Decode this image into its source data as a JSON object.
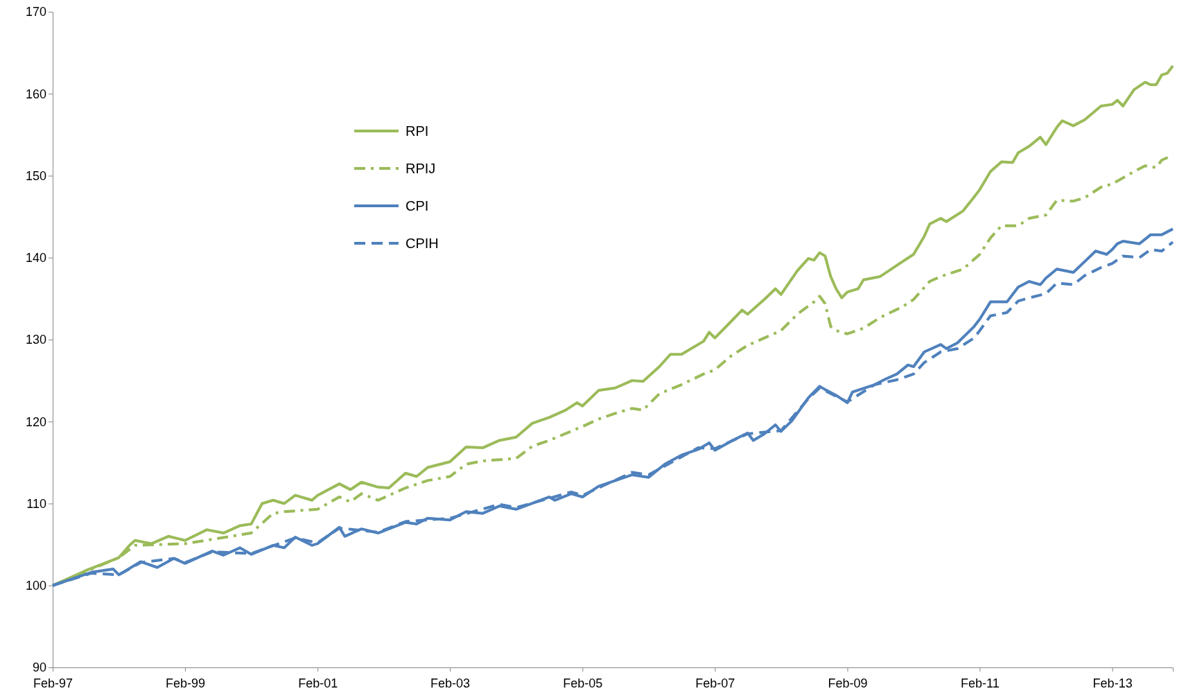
{
  "chart_data": {
    "type": "line",
    "ylim": [
      90,
      170
    ],
    "yticks": [
      90,
      100,
      110,
      120,
      130,
      140,
      150,
      160,
      170
    ],
    "xlim": [
      "1997-02",
      "2014-01"
    ],
    "xticks": [
      {
        "value": "1997-02",
        "label": "Feb-97"
      },
      {
        "value": "1999-02",
        "label": "Feb-99"
      },
      {
        "value": "2001-02",
        "label": "Feb-01"
      },
      {
        "value": "2003-02",
        "label": "Feb-03"
      },
      {
        "value": "2005-02",
        "label": "Feb-05"
      },
      {
        "value": "2007-02",
        "label": "Feb-07"
      },
      {
        "value": "2009-02",
        "label": "Feb-09"
      },
      {
        "value": "2011-02",
        "label": "Feb-11"
      },
      {
        "value": "2013-02",
        "label": "Feb-13"
      }
    ],
    "grid": false,
    "legend": "top left",
    "marker": "none",
    "series": [
      {
        "name": "RPI",
        "color": "#9bbb59",
        "line_style": "solid",
        "x": [
          "1997-02",
          "1997-08",
          "1998-02",
          "1998-04",
          "1998-05",
          "1998-08",
          "1998-11",
          "1999-02",
          "1999-06",
          "1999-09",
          "1999-12",
          "2000-02",
          "2000-04",
          "2000-06",
          "2000-08",
          "2000-10",
          "2001-01",
          "2001-02",
          "2001-06",
          "2001-08",
          "2001-10",
          "2002-01",
          "2002-03",
          "2002-06",
          "2002-08",
          "2002-10",
          "2003-02",
          "2003-05",
          "2003-08",
          "2003-11",
          "2004-02",
          "2004-05",
          "2004-08",
          "2004-11",
          "2005-01",
          "2005-02",
          "2005-05",
          "2005-08",
          "2005-11",
          "2006-01",
          "2006-04",
          "2006-06",
          "2006-08",
          "2006-12",
          "2007-01",
          "2007-02",
          "2007-05",
          "2007-07",
          "2007-08",
          "2007-11",
          "2008-01",
          "2008-02",
          "2008-05",
          "2008-07",
          "2008-08",
          "2008-09",
          "2008-10",
          "2008-11",
          "2008-12",
          "2009-01",
          "2009-02",
          "2009-04",
          "2009-05",
          "2009-08",
          "2009-12",
          "2010-02",
          "2010-04",
          "2010-05",
          "2010-07",
          "2010-08",
          "2010-11",
          "2011-01",
          "2011-02",
          "2011-04",
          "2011-06",
          "2011-08",
          "2011-09",
          "2011-11",
          "2012-01",
          "2012-02",
          "2012-04",
          "2012-05",
          "2012-07",
          "2012-09",
          "2012-12",
          "2013-02",
          "2013-03",
          "2013-04",
          "2013-06",
          "2013-08",
          "2013-09",
          "2013-10",
          "2013-11",
          "2013-12",
          "2014-01"
        ],
        "values": [
          100,
          101.8,
          103.4,
          104.9,
          105.5,
          105.1,
          106.0,
          105.5,
          106.8,
          106.4,
          107.3,
          107.5,
          110,
          110.4,
          110,
          111,
          110.4,
          111,
          112.4,
          111.7,
          112.6,
          112,
          111.9,
          113.7,
          113.3,
          114.4,
          115.1,
          116.9,
          116.8,
          117.7,
          118.1,
          119.8,
          120.5,
          121.4,
          122.3,
          121.9,
          123.8,
          124.1,
          125.0,
          124.9,
          126.7,
          128.2,
          128.2,
          129.8,
          130.9,
          130.2,
          132.2,
          133.6,
          133.1,
          134.9,
          136.2,
          135.5,
          138.4,
          139.9,
          139.7,
          140.6,
          140.2,
          137.7,
          136.2,
          135.1,
          135.8,
          136.2,
          137.3,
          137.7,
          139.5,
          140.4,
          142.6,
          144.1,
          144.8,
          144.4,
          145.7,
          147.4,
          148.3,
          150.5,
          151.7,
          151.6,
          152.8,
          153.6,
          154.7,
          153.8,
          155.9,
          156.7,
          156.1,
          156.8,
          158.5,
          158.7,
          159.2,
          158.5,
          160.5,
          161.4,
          161.1,
          161.1,
          162.3,
          162.5,
          163.4
        ]
      },
      {
        "name": "RPIJ",
        "color": "#9bbb59",
        "line_style": "dashdot",
        "x": [
          "1997-02",
          "1998-02",
          "1998-05",
          "1999-02",
          "2000-02",
          "2000-06",
          "2000-08",
          "2001-02",
          "2001-06",
          "2001-08",
          "2001-10",
          "2002-01",
          "2002-06",
          "2002-10",
          "2003-02",
          "2003-05",
          "2003-08",
          "2004-02",
          "2004-05",
          "2004-08",
          "2005-02",
          "2005-05",
          "2005-08",
          "2005-11",
          "2006-01",
          "2006-04",
          "2006-08",
          "2006-12",
          "2007-02",
          "2007-05",
          "2007-08",
          "2007-11",
          "2008-02",
          "2008-05",
          "2008-08",
          "2008-09",
          "2008-10",
          "2008-11",
          "2008-12",
          "2009-02",
          "2009-05",
          "2009-08",
          "2009-12",
          "2010-02",
          "2010-05",
          "2010-07",
          "2010-11",
          "2011-02",
          "2011-04",
          "2011-06",
          "2011-09",
          "2011-11",
          "2012-02",
          "2012-04",
          "2012-07",
          "2012-09",
          "2012-12",
          "2013-02",
          "2013-06",
          "2013-08",
          "2013-10",
          "2013-11",
          "2014-01"
        ],
        "values": [
          100,
          103.4,
          104.9,
          105.1,
          106.4,
          108.8,
          109,
          109.3,
          110.8,
          110.2,
          111.2,
          110.4,
          111.9,
          112.8,
          113.3,
          114.8,
          115.2,
          115.5,
          117,
          117.7,
          119.4,
          120.3,
          121,
          121.6,
          121.4,
          123.4,
          124.5,
          125.8,
          126.3,
          128,
          129.3,
          130.2,
          131.1,
          133.1,
          134.6,
          135.3,
          134.4,
          131.6,
          131.1,
          130.7,
          131.4,
          132.7,
          134,
          134.9,
          137.1,
          137.7,
          138.6,
          140.4,
          142.4,
          143.9,
          143.9,
          144.8,
          145.2,
          147,
          146.9,
          147.3,
          148.6,
          149,
          150.5,
          151.2,
          151,
          151.9,
          152.5
        ]
      },
      {
        "name": "CPI",
        "color": "#4f81bd",
        "line_style": "solid",
        "x": [
          "1997-02",
          "1997-06",
          "1997-09",
          "1998-01",
          "1998-02",
          "1998-06",
          "1998-09",
          "1998-12",
          "1999-02",
          "1999-07",
          "1999-09",
          "1999-12",
          "2000-02",
          "2000-06",
          "2000-08",
          "2000-10",
          "2001-01",
          "2001-02",
          "2001-06",
          "2001-07",
          "2001-10",
          "2002-01",
          "2002-06",
          "2002-08",
          "2002-10",
          "2003-02",
          "2003-05",
          "2003-08",
          "2003-11",
          "2004-02",
          "2004-08",
          "2004-09",
          "2004-12",
          "2005-02",
          "2005-05",
          "2005-08",
          "2005-11",
          "2006-02",
          "2006-05",
          "2006-08",
          "2006-11",
          "2007-01",
          "2007-02",
          "2007-05",
          "2007-08",
          "2007-09",
          "2007-11",
          "2008-01",
          "2008-02",
          "2008-04",
          "2008-07",
          "2008-09",
          "2008-10",
          "2008-12",
          "2009-02",
          "2009-03",
          "2009-07",
          "2009-09",
          "2009-11",
          "2010-01",
          "2010-02",
          "2010-04",
          "2010-07",
          "2010-08",
          "2010-10",
          "2011-01",
          "2011-02",
          "2011-04",
          "2011-07",
          "2011-09",
          "2011-11",
          "2012-01",
          "2012-02",
          "2012-04",
          "2012-07",
          "2012-09",
          "2012-11",
          "2013-01",
          "2013-02",
          "2013-03",
          "2013-04",
          "2013-07",
          "2013-09",
          "2013-11",
          "2014-01"
        ],
        "values": [
          100,
          100.9,
          101.6,
          102,
          101.3,
          102.9,
          102.2,
          103.3,
          102.7,
          104.2,
          103.7,
          104.6,
          103.8,
          104.9,
          104.6,
          105.9,
          104.9,
          105.1,
          107.1,
          106,
          106.9,
          106.4,
          107.7,
          107.5,
          108.2,
          108,
          109,
          108.8,
          109.7,
          109.3,
          110.8,
          110.4,
          111.2,
          110.8,
          112.1,
          112.8,
          113.5,
          113.2,
          114.8,
          115.9,
          116.6,
          117.4,
          116.5,
          117.6,
          118.6,
          117.7,
          118.5,
          119.6,
          118.8,
          120.1,
          122.9,
          124.3,
          123.9,
          123.2,
          122.3,
          123.6,
          124.5,
          125.2,
          125.8,
          126.9,
          126.7,
          128.5,
          129.4,
          128.9,
          129.6,
          131.6,
          132.5,
          134.6,
          134.6,
          136.4,
          137.1,
          136.7,
          137.5,
          138.6,
          138.2,
          139.5,
          140.8,
          140.4,
          141,
          141.7,
          142,
          141.7,
          142.8,
          142.8,
          143.5
        ]
      },
      {
        "name": "CPIH",
        "color": "#4f81bd",
        "line_style": "dashed",
        "x": [
          "1997-02",
          "1997-09",
          "1998-02",
          "1998-06",
          "1998-12",
          "1999-02",
          "1999-07",
          "2000-02",
          "2000-10",
          "2001-02",
          "2001-06",
          "2002-01",
          "2002-06",
          "2003-02",
          "2003-11",
          "2004-02",
          "2004-12",
          "2005-02",
          "2005-11",
          "2006-02",
          "2006-11",
          "2007-02",
          "2007-08",
          "2008-02",
          "2008-07",
          "2008-09",
          "2009-02",
          "2009-07",
          "2009-11",
          "2010-02",
          "2010-04",
          "2010-07",
          "2010-10",
          "2011-01",
          "2011-02",
          "2011-04",
          "2011-07",
          "2011-09",
          "2011-11",
          "2012-02",
          "2012-04",
          "2012-07",
          "2012-09",
          "2012-12",
          "2013-02",
          "2013-04",
          "2013-07",
          "2013-09",
          "2013-11",
          "2014-01"
        ],
        "values": [
          100,
          101.5,
          101.3,
          102.8,
          103.3,
          102.8,
          104.1,
          103.9,
          105.8,
          105.2,
          107,
          106.5,
          107.8,
          108.2,
          109.9,
          109.5,
          111.4,
          111,
          113.8,
          113.5,
          116.8,
          116.7,
          118.5,
          118.9,
          122.8,
          124.1,
          122.4,
          124.5,
          125.1,
          125.8,
          127.2,
          128.5,
          128.9,
          130.2,
          131.1,
          132.9,
          133.3,
          134.7,
          135.1,
          135.6,
          136.9,
          136.7,
          137.8,
          138.8,
          139.3,
          140.2,
          140,
          141,
          140.8,
          141.9
        ]
      }
    ]
  }
}
